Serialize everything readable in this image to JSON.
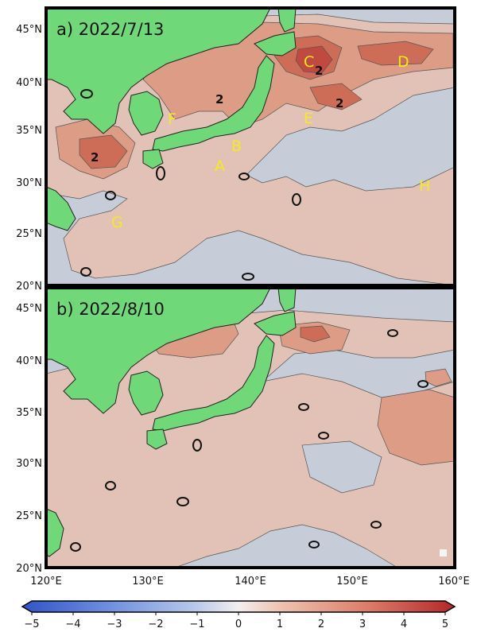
{
  "panels": [
    {
      "id": "a",
      "label": "a) 2022/7/13",
      "markers": [
        "A",
        "B",
        "C",
        "D",
        "E",
        "F",
        "G",
        "H"
      ],
      "contour_labels": [
        "2",
        "2",
        "2",
        "2"
      ]
    },
    {
      "id": "b",
      "label": "b) 2022/8/10"
    }
  ],
  "axes": {
    "lat_ticks": [
      "45°N",
      "40°N",
      "35°N",
      "30°N",
      "25°N",
      "20°N"
    ],
    "lon_ticks": [
      "120°E",
      "130°E",
      "140°E",
      "150°E",
      "160°E"
    ]
  },
  "colorbar": {
    "ticks": [
      "−5",
      "−4",
      "−3",
      "−2",
      "−1",
      "0",
      "1",
      "2",
      "3",
      "4",
      "5"
    ],
    "range": [
      -5,
      5
    ],
    "colors": {
      "neg_max": "#2f55c9",
      "neutral": "#f2eeee",
      "pos_max": "#b5262a"
    }
  },
  "colors": {
    "land": "#6fd97a",
    "sea_neutral": "#c6cdd9",
    "warm1": "#e2c2b6",
    "warm2": "#dc9c85",
    "warm3": "#cd6d58",
    "warm4": "#c04a40",
    "marker": "#f5ec16"
  }
}
